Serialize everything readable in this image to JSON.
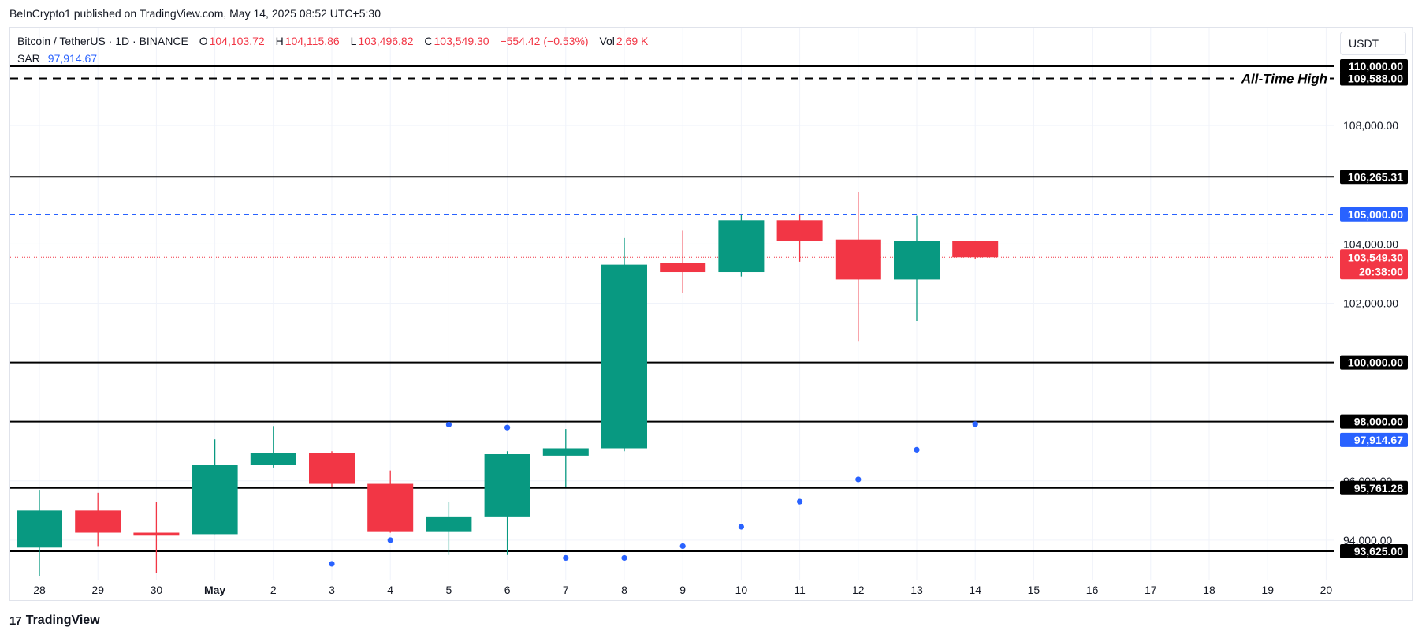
{
  "header": {
    "published": "BeInCrypto1 published on TradingView.com, May 14, 2025 08:52 UTC+5:30"
  },
  "legend": {
    "symbol": "Bitcoin / TetherUS · 1D · BINANCE",
    "o_label": "O",
    "o_value": "104,103.72",
    "h_label": "H",
    "h_value": "104,115.86",
    "l_label": "L",
    "l_value": "103,496.82",
    "c_label": "C",
    "c_value": "103,549.30",
    "change": "−554.42 (−0.53%)",
    "vol_label": "Vol",
    "vol_value": "2.69 K",
    "sar_label": "SAR",
    "sar_value": "97,914.67"
  },
  "currency": "USDT",
  "footer": {
    "brand": "TradingView",
    "mark": "17"
  },
  "colors": {
    "up": "#089981",
    "down": "#f23645",
    "sar": "#2962ff",
    "hline": "#000000",
    "blue_dash": "#2962ff",
    "grid": "#f0f3fa"
  },
  "chart_data": {
    "type": "candlestick",
    "title": "",
    "ylim": [
      92500,
      111000
    ],
    "y_ticks": [
      "94,000.00",
      "96,000.00",
      "102,000.00",
      "104,000.00",
      "108,000.00"
    ],
    "y_tick_values": [
      94000,
      96000,
      102000,
      104000,
      108000
    ],
    "x_ticks": [
      "28",
      "29",
      "30",
      "May",
      "2",
      "3",
      "4",
      "5",
      "6",
      "7",
      "8",
      "9",
      "10",
      "11",
      "12",
      "13",
      "14",
      "15",
      "16",
      "17",
      "18",
      "19",
      "20"
    ],
    "candles": [
      {
        "date": "Apr 28",
        "open": 93750,
        "high": 95700,
        "low": 92800,
        "close": 95000
      },
      {
        "date": "Apr 29",
        "open": 95000,
        "high": 95600,
        "low": 93800,
        "close": 94250
      },
      {
        "date": "Apr 30",
        "open": 94250,
        "high": 95300,
        "low": 92900,
        "close": 94150
      },
      {
        "date": "May 1",
        "open": 94200,
        "high": 97400,
        "low": 94200,
        "close": 96550
      },
      {
        "date": "May 2",
        "open": 96550,
        "high": 97850,
        "low": 96450,
        "close": 96950
      },
      {
        "date": "May 3",
        "open": 96950,
        "high": 97000,
        "low": 95800,
        "close": 95900
      },
      {
        "date": "May 4",
        "open": 95900,
        "high": 96350,
        "low": 94250,
        "close": 94300
      },
      {
        "date": "May 5",
        "open": 94300,
        "high": 95300,
        "low": 93500,
        "close": 94800
      },
      {
        "date": "May 6",
        "open": 94800,
        "high": 97000,
        "low": 93500,
        "close": 96900
      },
      {
        "date": "May 7",
        "open": 96850,
        "high": 97750,
        "low": 95800,
        "close": 97100
      },
      {
        "date": "May 8",
        "open": 97100,
        "high": 104200,
        "low": 97000,
        "close": 103300
      },
      {
        "date": "May 9",
        "open": 103350,
        "high": 104450,
        "low": 102350,
        "close": 103050
      },
      {
        "date": "May 10",
        "open": 103050,
        "high": 105000,
        "low": 102900,
        "close": 104800
      },
      {
        "date": "May 11",
        "open": 104800,
        "high": 105000,
        "low": 103400,
        "close": 104100
      },
      {
        "date": "May 12",
        "open": 104150,
        "high": 105750,
        "low": 100700,
        "close": 102800
      },
      {
        "date": "May 13",
        "open": 102800,
        "high": 104950,
        "low": 101400,
        "close": 104100
      },
      {
        "date": "May 14",
        "open": 104103.72,
        "high": 104115.86,
        "low": 103496.82,
        "close": 103549.3
      }
    ],
    "sar": [
      {
        "date": "May 3",
        "value": 93200
      },
      {
        "date": "May 4",
        "value": 94000
      },
      {
        "date": "May 5",
        "value": 97900
      },
      {
        "date": "May 6",
        "value": 97800
      },
      {
        "date": "May 7",
        "value": 93400
      },
      {
        "date": "May 8",
        "value": 93400
      },
      {
        "date": "May 9",
        "value": 93800
      },
      {
        "date": "May 10",
        "value": 94450
      },
      {
        "date": "May 11",
        "value": 95300
      },
      {
        "date": "May 12",
        "value": 96050
      },
      {
        "date": "May 13",
        "value": 97050
      },
      {
        "date": "May 14",
        "value": 97914.67
      }
    ],
    "levels": [
      {
        "value": 110000,
        "label": "110,000.00",
        "style": "solid"
      },
      {
        "value": 109588,
        "label": "109,588.00",
        "style": "dashed",
        "annotation": "All-Time High"
      },
      {
        "value": 106265.31,
        "label": "106,265.31",
        "style": "solid"
      },
      {
        "value": 105000,
        "label": "105,000.00",
        "style": "blue-dashed"
      },
      {
        "value": 100000,
        "label": "100,000.00",
        "style": "solid"
      },
      {
        "value": 98000,
        "label": "98,000.00",
        "style": "solid"
      },
      {
        "value": 95761.28,
        "label": "95,761.28",
        "style": "solid"
      },
      {
        "value": 93625,
        "label": "93,625.00",
        "style": "solid"
      }
    ],
    "current_price": {
      "value": 103549.3,
      "label": "103,549.30",
      "countdown": "20:38:00"
    },
    "sar_tag": {
      "value": 97914.67,
      "label": "97,914.67"
    }
  }
}
